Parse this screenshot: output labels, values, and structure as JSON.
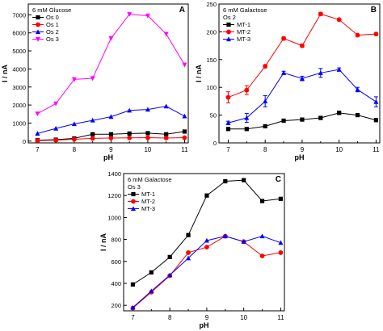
{
  "chart_data": [
    {
      "type": "line",
      "panel_label": "A",
      "annotation": "6 mM Glucose",
      "xlabel": "pH",
      "ylabel": "I / nA",
      "x": [
        7,
        7.5,
        8,
        8.5,
        9,
        9.5,
        10,
        10.5,
        11
      ],
      "xlim": [
        6.75,
        11.1
      ],
      "ylim": [
        -100,
        7600
      ],
      "xticks": [
        "7",
        "8",
        "9",
        "10",
        "11"
      ],
      "yticks": [
        "0",
        "1000",
        "2000",
        "3000",
        "4000",
        "5000",
        "6000",
        "7000"
      ],
      "legend_position": "top-left",
      "series": [
        {
          "name": "Os 0",
          "color": "#000000",
          "marker": "square",
          "values": [
            50,
            80,
            150,
            380,
            380,
            420,
            440,
            380,
            530
          ]
        },
        {
          "name": "Os 1",
          "color": "#ff0000",
          "marker": "circle",
          "values": [
            30,
            50,
            100,
            150,
            170,
            180,
            190,
            170,
            190
          ]
        },
        {
          "name": "Os 2",
          "color": "#0000ff",
          "marker": "triangle-up",
          "values": [
            420,
            700,
            950,
            1150,
            1350,
            1700,
            1750,
            1930,
            1380
          ]
        },
        {
          "name": "Os 3",
          "color": "#ff00ff",
          "marker": "triangle-down",
          "values": [
            1520,
            2080,
            3420,
            3480,
            5700,
            7030,
            6950,
            5940,
            4230
          ]
        }
      ]
    },
    {
      "type": "line",
      "panel_label": "B",
      "annotation": "6 mM Galactose\nOs 2",
      "xlabel": "pH",
      "ylabel": "I / nA",
      "x": [
        7,
        7.5,
        8,
        8.5,
        9,
        9.5,
        10,
        10.5,
        11
      ],
      "xlim": [
        6.75,
        11.1
      ],
      "ylim": [
        0,
        250
      ],
      "xticks": [
        "7",
        "8",
        "9",
        "10",
        "11"
      ],
      "yticks": [
        "0",
        "50",
        "100",
        "150",
        "200",
        "250"
      ],
      "legend_position": "top-left",
      "series": [
        {
          "name": "MT-1",
          "color": "#000000",
          "marker": "square",
          "values": [
            25,
            25,
            30,
            40,
            42,
            45,
            54,
            50,
            41
          ],
          "errors": [
            2,
            2,
            2,
            2,
            2,
            3,
            3,
            2,
            2
          ]
        },
        {
          "name": "MT-2",
          "color": "#ff0000",
          "marker": "circle",
          "values": [
            82,
            95,
            138,
            188,
            175,
            232,
            222,
            194,
            196
          ],
          "errors": [
            10,
            8,
            3,
            3,
            3,
            3,
            2,
            2,
            2
          ]
        },
        {
          "name": "MT-3",
          "color": "#0000ff",
          "marker": "triangle-up",
          "values": [
            36,
            45,
            75,
            126,
            116,
            126,
            132,
            96,
            74
          ],
          "errors": [
            3,
            8,
            10,
            3,
            4,
            8,
            3,
            4,
            9
          ]
        }
      ]
    },
    {
      "type": "line",
      "panel_label": "C",
      "annotation": "6 mM Galactose\nOs 3",
      "xlabel": "pH",
      "ylabel": "I / nA",
      "x": [
        7,
        7.5,
        8,
        8.5,
        9,
        9.5,
        10,
        10.5,
        11
      ],
      "xlim": [
        6.75,
        11.1
      ],
      "ylim": [
        150,
        1400
      ],
      "xticks": [
        "7",
        "8",
        "9",
        "10",
        "11"
      ],
      "yticks": [
        "200",
        "400",
        "600",
        "800",
        "1000",
        "1200",
        "1400"
      ],
      "legend_position": "top-left",
      "series": [
        {
          "name": "MT-1",
          "color": "#000000",
          "marker": "square",
          "values": [
            390,
            500,
            640,
            840,
            1200,
            1330,
            1340,
            1150,
            1170
          ]
        },
        {
          "name": "MT-2",
          "color": "#ff0000",
          "marker": "circle",
          "values": [
            175,
            320,
            470,
            680,
            730,
            830,
            780,
            650,
            680
          ]
        },
        {
          "name": "MT-3",
          "color": "#0000ff",
          "marker": "triangle-up",
          "values": [
            180,
            330,
            475,
            630,
            790,
            830,
            780,
            830,
            770
          ]
        }
      ]
    }
  ]
}
